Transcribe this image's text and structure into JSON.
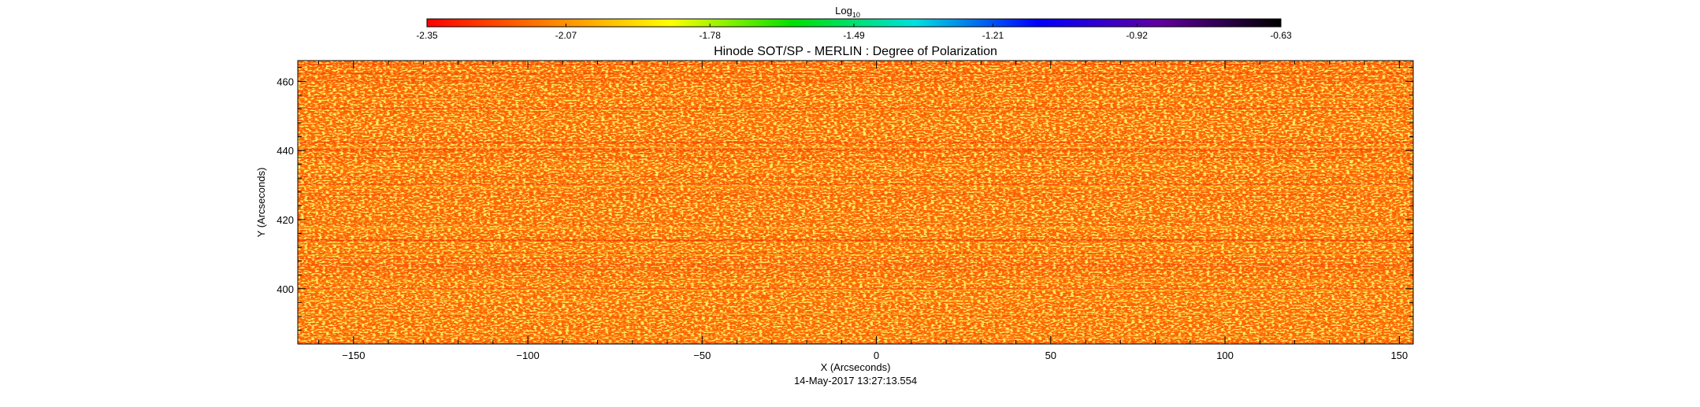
{
  "chart_data": {
    "type": "heatmap",
    "title": "Hinode SOT/SP - MERLIN : Degree of Polarization",
    "xlabel": "X (Arcseconds)",
    "ylabel": "Y (Arcseconds)",
    "timestamp": "14-May-2017 13:27:13.554",
    "xlim": [
      -166,
      154
    ],
    "ylim": [
      384,
      466
    ],
    "xticks": [
      -150,
      -100,
      -50,
      0,
      50,
      100,
      150
    ],
    "yticks": [
      400,
      420,
      440,
      460
    ],
    "colorbar": {
      "label_base": "Log",
      "label_sub": "10",
      "ticks": [
        -2.35,
        -2.07,
        -1.78,
        -1.49,
        -1.21,
        -0.92,
        -0.63
      ],
      "tick_labels": [
        "-2.35",
        "-2.07",
        "-1.78",
        "-1.49",
        "-1.21",
        "-0.92",
        "-0.63"
      ],
      "range": [
        -2.35,
        -0.63
      ],
      "colors": [
        "#ff0000",
        "#ff8000",
        "#ffff00",
        "#00e000",
        "#00e0e0",
        "#0000ff",
        "#6000a0",
        "#000000"
      ]
    },
    "map_dominant_value": -2.22,
    "map_colors": {
      "base": "#ff6a00",
      "high": "#ffd21e",
      "low": "#ee1800"
    },
    "grid": false
  }
}
